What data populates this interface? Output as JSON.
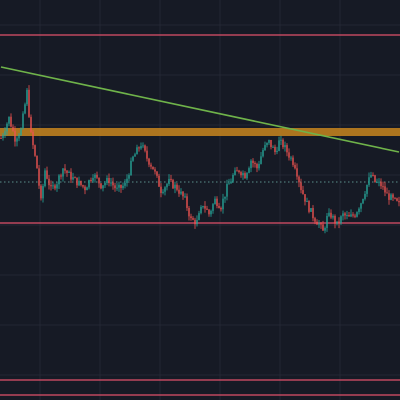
{
  "colors": {
    "background": "#161a25",
    "grid": "#232733",
    "bull": "#26a69a",
    "bear": "#ef5350",
    "resistance_zone": "#c8861f",
    "trendline": "#6fb34a",
    "horizontal_line": "#e0506a",
    "price_line": "#5a8f8a"
  },
  "chart_data": {
    "type": "candlestick",
    "title": "",
    "xlabel": "",
    "ylabel": "",
    "ylim": [
      0,
      400
    ],
    "grid": true,
    "drawings": {
      "resistance_zone": {
        "from": 264,
        "to": 272
      },
      "horizontal_lines": [
        365,
        177,
        20,
        5
      ],
      "price_line": 218,
      "trendline": {
        "start": {
          "bar": 0,
          "price": 333
        },
        "end": {
          "bar": 199,
          "price": 248
        }
      }
    },
    "series": [
      {
        "key": "price",
        "anchors": [
          [
            0,
            262
          ],
          [
            4,
            282
          ],
          [
            7,
            262
          ],
          [
            10,
            270
          ],
          [
            13,
            308
          ],
          [
            15,
            265
          ],
          [
            18,
            232
          ],
          [
            20,
            198
          ],
          [
            22,
            230
          ],
          [
            25,
            210
          ],
          [
            28,
            218
          ],
          [
            31,
            232
          ],
          [
            34,
            225
          ],
          [
            38,
            218
          ],
          [
            42,
            212
          ],
          [
            46,
            226
          ],
          [
            50,
            215
          ],
          [
            54,
            220
          ],
          [
            58,
            210
          ],
          [
            62,
            215
          ],
          [
            66,
            242
          ],
          [
            70,
            256
          ],
          [
            73,
            242
          ],
          [
            76,
            232
          ],
          [
            80,
            210
          ],
          [
            84,
            218
          ],
          [
            88,
            212
          ],
          [
            92,
            200
          ],
          [
            95,
            180
          ],
          [
            98,
            178
          ],
          [
            101,
            196
          ],
          [
            104,
            186
          ],
          [
            107,
            200
          ],
          [
            110,
            194
          ],
          [
            113,
            212
          ],
          [
            116,
            224
          ],
          [
            119,
            230
          ],
          [
            122,
            225
          ],
          [
            125,
            240
          ],
          [
            128,
            232
          ],
          [
            131,
            250
          ],
          [
            134,
            258
          ],
          [
            137,
            248
          ],
          [
            139,
            258
          ],
          [
            141,
            255
          ],
          [
            144,
            245
          ],
          [
            147,
            235
          ],
          [
            150,
            212
          ],
          [
            153,
            196
          ],
          [
            156,
            184
          ],
          [
            159,
            176
          ],
          [
            161,
            168
          ],
          [
            163,
            182
          ],
          [
            165,
            185
          ],
          [
            168,
            175
          ],
          [
            171,
            185
          ],
          [
            174,
            182
          ],
          [
            177,
            186
          ],
          [
            180,
            198
          ],
          [
            183,
            215
          ],
          [
            185,
            225
          ],
          [
            187,
            218
          ],
          [
            190,
            215
          ],
          [
            193,
            205
          ],
          [
            196,
            200
          ],
          [
            199,
            195
          ]
        ]
      }
    ]
  }
}
